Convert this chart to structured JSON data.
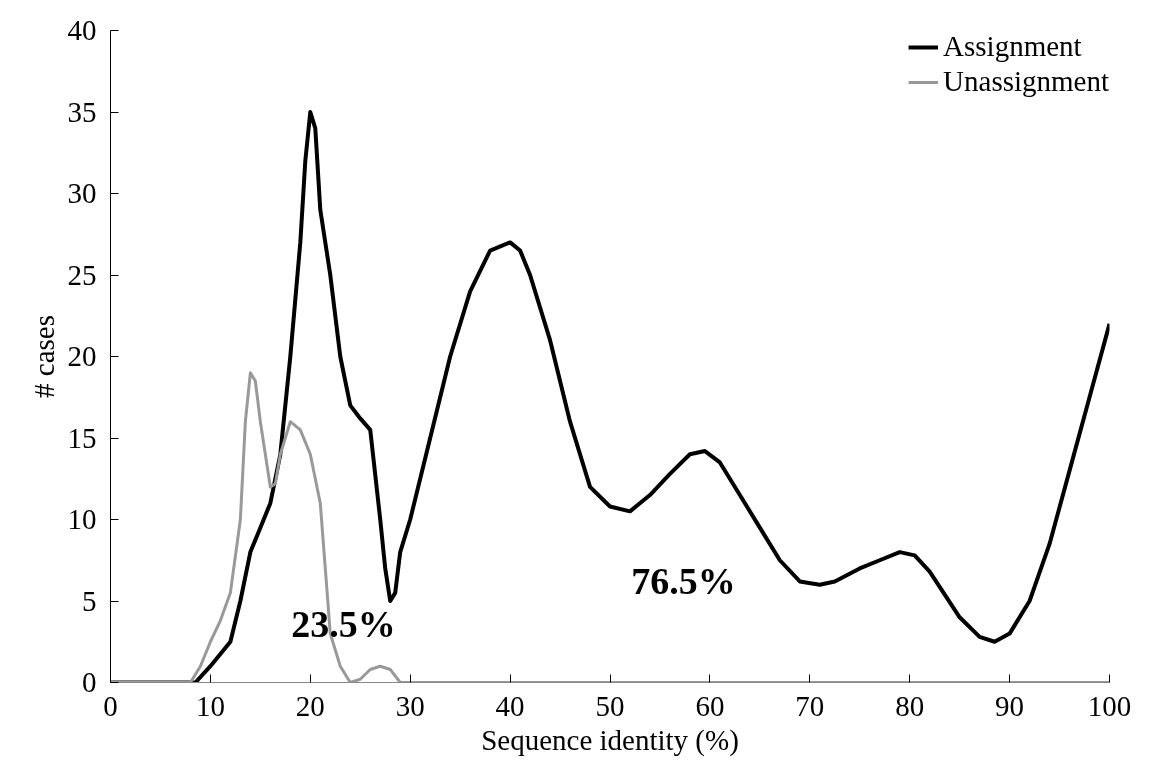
{
  "chart_data": {
    "type": "line",
    "xlabel": "Sequence identity (%)",
    "ylabel": "# cases",
    "xlim": [
      0,
      100
    ],
    "xticks": [
      0,
      10,
      20,
      30,
      40,
      50,
      60,
      70,
      80,
      90,
      100
    ],
    "ylim": [
      0,
      40
    ],
    "yticks": [
      0,
      5,
      10,
      15,
      20,
      25,
      30,
      35,
      40
    ],
    "grid": false,
    "legend": "top right",
    "marker": "none",
    "line_style": "solid",
    "series": [
      {
        "name": "Assignment",
        "color": "#000000",
        "x": [
          0,
          7,
          8.5,
          10,
          12,
          13,
          14,
          15,
          16,
          17,
          18,
          19,
          19.5,
          20,
          20.5,
          21,
          22,
          23,
          24,
          25,
          26,
          27,
          27.5,
          28,
          28.5,
          29,
          30,
          32,
          34,
          36,
          38,
          40,
          41,
          42,
          44,
          46,
          48,
          50,
          52,
          54,
          56,
          58,
          59.5,
          61,
          63,
          65,
          67,
          69,
          71,
          72.5,
          75,
          77,
          79,
          80.5,
          82,
          85,
          87,
          88.5,
          90,
          92,
          94,
          96,
          98,
          100
        ],
        "values": [
          0,
          0,
          0,
          1,
          2.5,
          5,
          8,
          9.5,
          11,
          14,
          20,
          27,
          32,
          35,
          34,
          29,
          25,
          20,
          17,
          16.2,
          15.5,
          10,
          7,
          5,
          5.5,
          8,
          10,
          15,
          20,
          24,
          26.5,
          27,
          26.5,
          25,
          21,
          16,
          12,
          10.8,
          10.5,
          11.5,
          12.8,
          14,
          14.2,
          13.5,
          11.5,
          9.5,
          7.5,
          6.2,
          6,
          6.2,
          7,
          7.5,
          8,
          7.8,
          6.8,
          4,
          2.8,
          2.5,
          3,
          5,
          8.5,
          13,
          17.5,
          22
        ]
      },
      {
        "name": "Unassignment",
        "color": "#999999",
        "x": [
          0,
          8,
          9,
          10,
          11,
          12,
          13,
          13.5,
          14,
          14.5,
          15,
          16,
          16.5,
          17,
          18,
          19,
          20,
          21,
          21.5,
          22,
          23,
          24,
          25,
          26,
          27,
          28,
          29,
          30,
          35,
          100
        ],
        "values": [
          0,
          0,
          1,
          2.5,
          3.8,
          5.5,
          10,
          16,
          19,
          18.5,
          16,
          12,
          12.2,
          14,
          16,
          15.5,
          14,
          11,
          7,
          3,
          1,
          0,
          0.2,
          0.8,
          1,
          0.8,
          0,
          0,
          0,
          0
        ]
      }
    ],
    "annotations": [
      "23.5%",
      "76.5%"
    ]
  }
}
